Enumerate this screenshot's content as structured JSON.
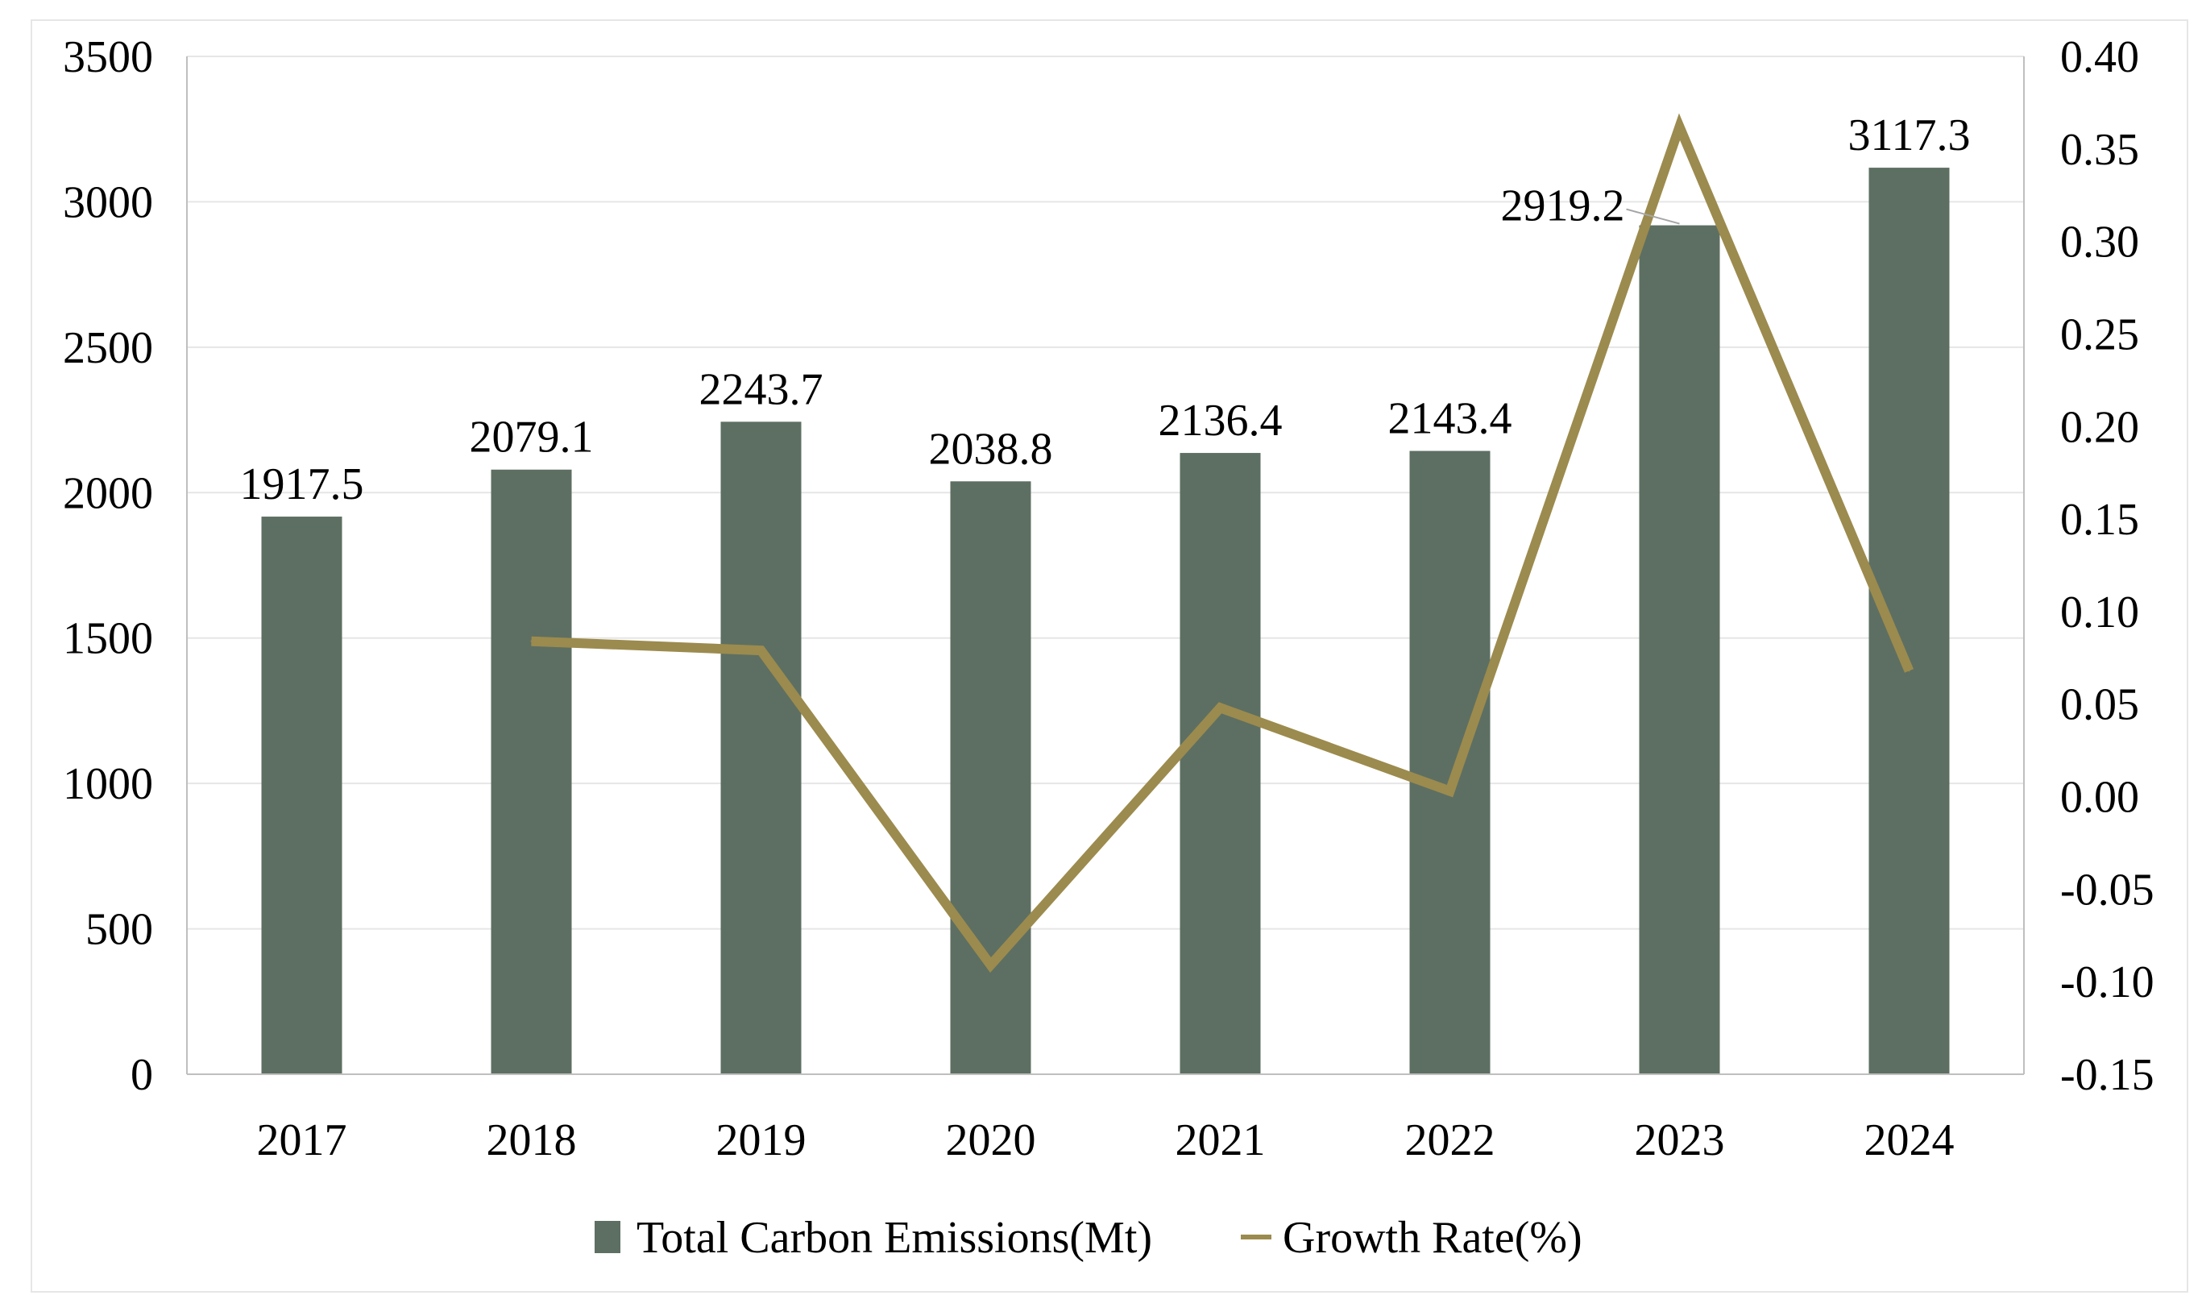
{
  "colors": {
    "bar": "#5d6f62",
    "line": "#9c8b4e",
    "grid": "#e6e6e6",
    "axis": "#bfbfbf"
  },
  "chart_data": {
    "type": "bar",
    "title": "",
    "xlabel": "",
    "ylabel": "",
    "categories": [
      "2017",
      "2018",
      "2019",
      "2020",
      "2021",
      "2022",
      "2023",
      "2024"
    ],
    "series": [
      {
        "name": "Total Carbon Emissions(Mt)",
        "type": "bar",
        "axis": "left",
        "values": [
          1917.5,
          2079.1,
          2243.7,
          2038.8,
          2136.4,
          2143.4,
          2919.2,
          3117.3
        ],
        "labels": [
          "1917.5",
          "2079.1",
          "2243.7",
          "2038.8",
          "2136.4",
          "2143.4",
          "2919.2",
          "3117.3"
        ]
      },
      {
        "name": "Growth Rate(%)",
        "type": "line",
        "axis": "right",
        "values": [
          null,
          0.084,
          0.079,
          -0.091,
          0.048,
          0.003,
          0.362,
          0.068
        ]
      }
    ],
    "y_left": {
      "min": 0,
      "max": 3500,
      "ticks": [
        "0",
        "500",
        "1000",
        "1500",
        "2000",
        "2500",
        "3000",
        "3500"
      ]
    },
    "y_right": {
      "min": -0.15,
      "max": 0.4,
      "ticks": [
        "-0.15",
        "-0.10",
        "-0.05",
        "0.00",
        "0.05",
        "0.10",
        "0.15",
        "0.20",
        "0.25",
        "0.30",
        "0.35",
        "0.40"
      ]
    },
    "legend": {
      "position": "bottom",
      "items": [
        "Total Carbon Emissions(Mt)",
        "Growth Rate(%)"
      ]
    },
    "grid": true
  }
}
